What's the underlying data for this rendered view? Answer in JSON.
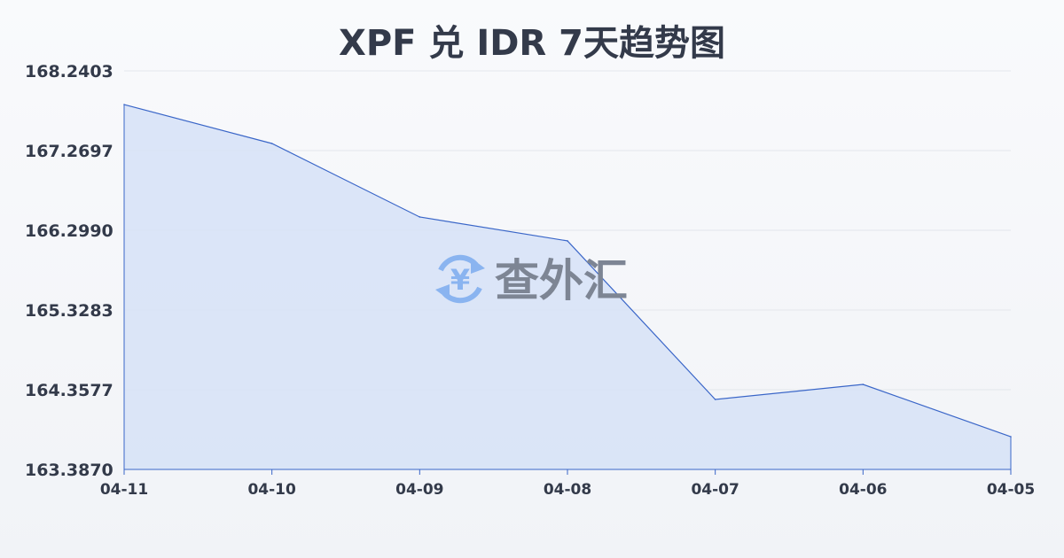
{
  "chart_data": {
    "type": "area",
    "title": "XPF 兑 IDR 7天趋势图",
    "categories": [
      "04-11",
      "04-10",
      "04-09",
      "04-08",
      "04-07",
      "04-06",
      "04-05"
    ],
    "values": [
      167.83,
      167.356,
      166.461,
      166.17,
      164.239,
      164.422,
      163.786
    ],
    "yticks": [
      "168.2403",
      "167.2697",
      "166.2990",
      "165.3283",
      "164.3577",
      "163.3870"
    ],
    "ylim": [
      163.387,
      168.2403
    ],
    "grid": true,
    "line_color": "#3a66c8",
    "fill_color": "#d6e2f7"
  },
  "watermark": {
    "text": "查外汇",
    "icon": "yen-exchange-icon",
    "icon_color": "#8ab4f0"
  }
}
